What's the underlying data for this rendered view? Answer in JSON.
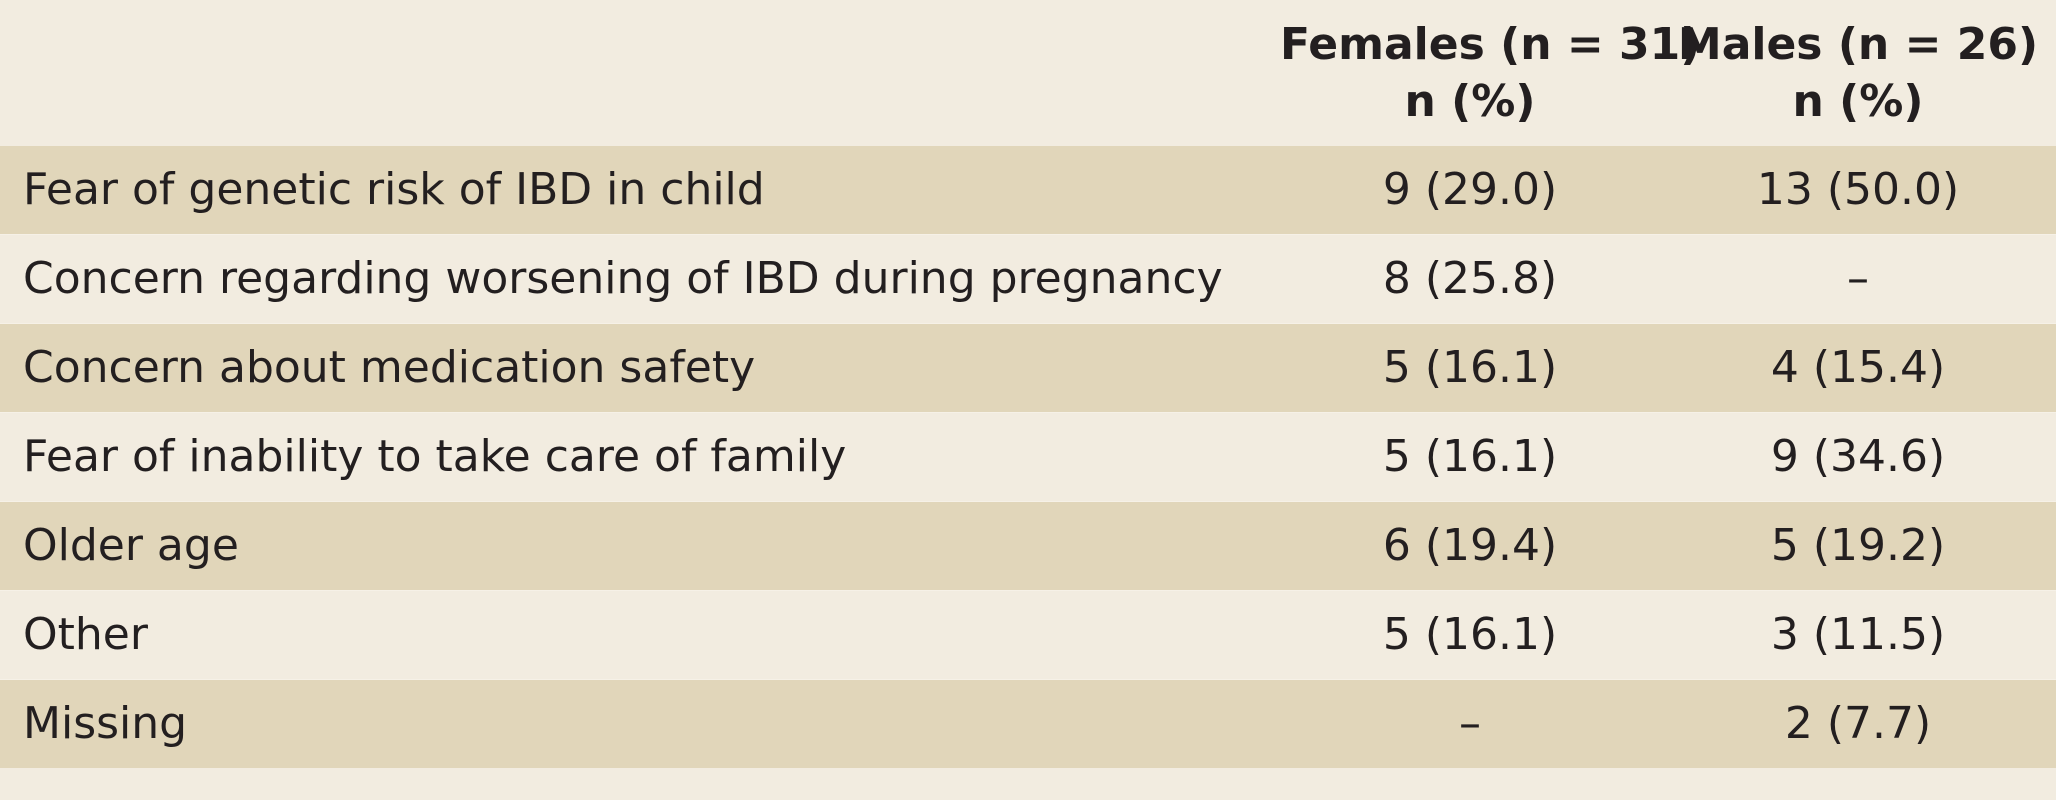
{
  "table": {
    "headers": {
      "females": {
        "line1": "Females (n = 31)",
        "line2": "n (%)"
      },
      "males": {
        "line1": "Males (n = 26)",
        "line2": "n (%)"
      }
    },
    "rows": [
      {
        "label": "Fear of genetic risk of IBD in child",
        "females": "9 (29.0)",
        "males": "13 (50.0)"
      },
      {
        "label": "Concern regarding worsening of IBD during pregnancy",
        "females": "8 (25.8)",
        "males": "–"
      },
      {
        "label": "Concern about medication safety",
        "females": "5 (16.1)",
        "males": "4 (15.4)"
      },
      {
        "label": "Fear of inability to take care of family",
        "females": "5 (16.1)",
        "males": "9 (34.6)"
      },
      {
        "label": "Older age",
        "females": "6 (19.4)",
        "males": "5 (19.2)"
      },
      {
        "label": "Other",
        "females": "5 (16.1)",
        "males": "3 (11.5)"
      },
      {
        "label": "Missing",
        "females": "–",
        "males": "2 (7.7)"
      }
    ]
  },
  "colors": {
    "background": "#f2ece0",
    "row_shade": "#e1d6ba",
    "text": "#231f20"
  }
}
